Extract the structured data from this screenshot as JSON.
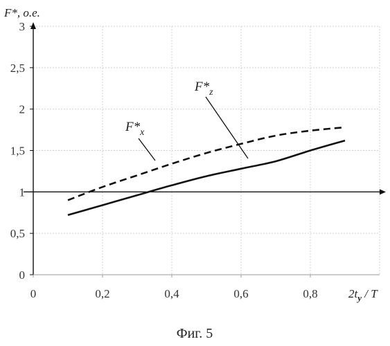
{
  "figure": {
    "caption": "Фиг. 5"
  },
  "chart_data": {
    "type": "line",
    "title": "",
    "ylabel": "F*, o.e.",
    "xlabel_main": "2t",
    "xlabel_sub": "y",
    "xlabel_tail": " / T",
    "xlim": [
      0,
      1.0
    ],
    "ylim": [
      0,
      3
    ],
    "x_ticks": [
      0,
      0.2,
      0.4,
      0.6,
      0.8
    ],
    "x_tick_labels": [
      "0",
      "0,2",
      "0,4",
      "0,6",
      "0,8"
    ],
    "y_ticks": [
      0,
      0.5,
      1,
      1.5,
      2,
      2.5,
      3
    ],
    "y_tick_labels": [
      "0",
      "0,5",
      "1",
      "1,5",
      "2",
      "2,5",
      "3"
    ],
    "reference_line_y": 1,
    "grid": true,
    "series": [
      {
        "name": "F*x",
        "label_main": "F*",
        "label_sub": "x",
        "line_style": "dashed",
        "color": "#111111",
        "x": [
          0.1,
          0.2,
          0.3,
          0.4,
          0.5,
          0.6,
          0.7,
          0.8,
          0.9
        ],
        "y": [
          0.9,
          1.06,
          1.2,
          1.34,
          1.47,
          1.58,
          1.68,
          1.74,
          1.78
        ]
      },
      {
        "name": "F*z",
        "label_main": "F*",
        "label_sub": "z",
        "line_style": "solid",
        "color": "#111111",
        "x": [
          0.1,
          0.2,
          0.3,
          0.4,
          0.5,
          0.6,
          0.7,
          0.8,
          0.9
        ],
        "y": [
          0.72,
          0.84,
          0.96,
          1.08,
          1.19,
          1.28,
          1.37,
          1.5,
          1.62
        ]
      }
    ]
  }
}
